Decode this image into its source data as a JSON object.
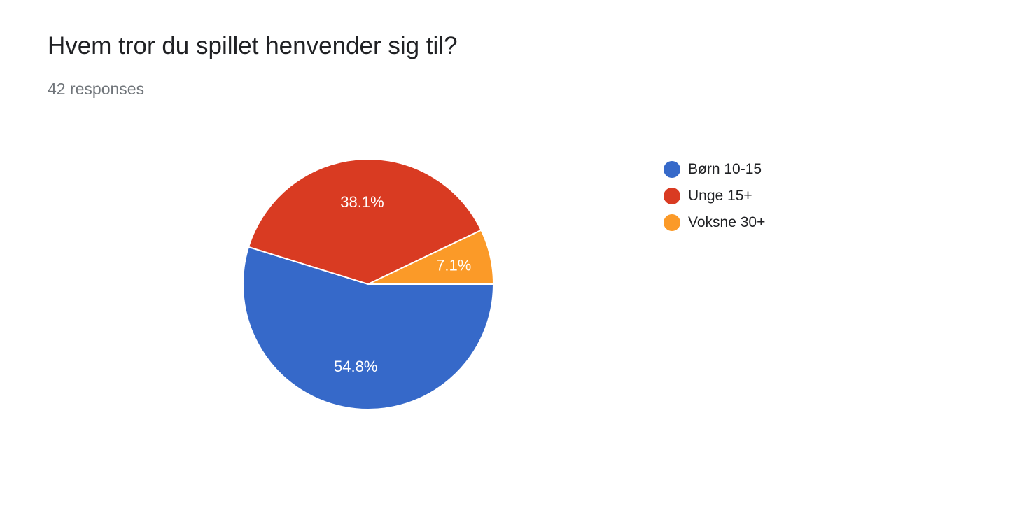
{
  "header": {
    "title": "Hvem tror du spillet henvender sig til?",
    "responses": "42 responses"
  },
  "chart_data": {
    "type": "pie",
    "categories": [
      "Børn 10-15",
      "Unge 15+",
      "Voksne 30+"
    ],
    "values": [
      54.8,
      38.1,
      7.1
    ],
    "value_labels": [
      "54.8%",
      "38.1%",
      "7.1%"
    ],
    "colors": [
      "#3669c9",
      "#d93b22",
      "#fb9a28"
    ],
    "legend_position": "right",
    "start_angle": "3 o'clock",
    "direction": "counterclockwise from 3 o'clock for small slice; blue clockwise below horizontal"
  }
}
